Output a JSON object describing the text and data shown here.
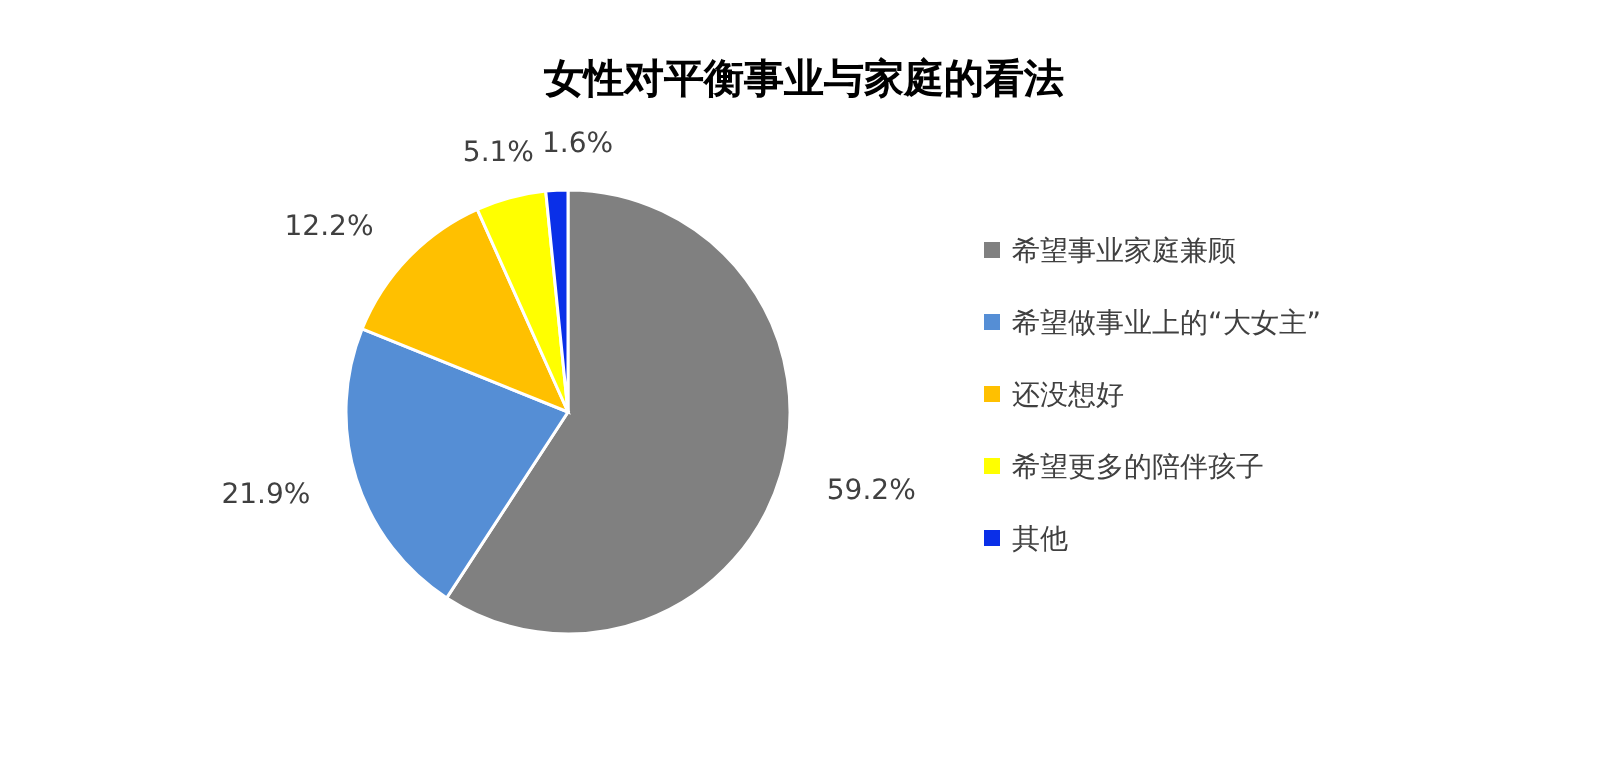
{
  "chart_data": {
    "type": "pie",
    "title": "女性对平衡事业与家庭的看法",
    "categories": [
      "希望事业家庭兼顾",
      "希望做事业上的“大女主”",
      "还没想好",
      "希望更多的陪伴孩子",
      "其他"
    ],
    "values": [
      59.2,
      21.9,
      12.2,
      5.1,
      1.6
    ],
    "colors": [
      "#808080",
      "#558ed5",
      "#ffc000",
      "#ffff00",
      "#0a2fe8"
    ],
    "value_labels": [
      "59.2%",
      "21.9%",
      "12.2%",
      "5.1%",
      "1.6%"
    ],
    "legend": "right"
  }
}
